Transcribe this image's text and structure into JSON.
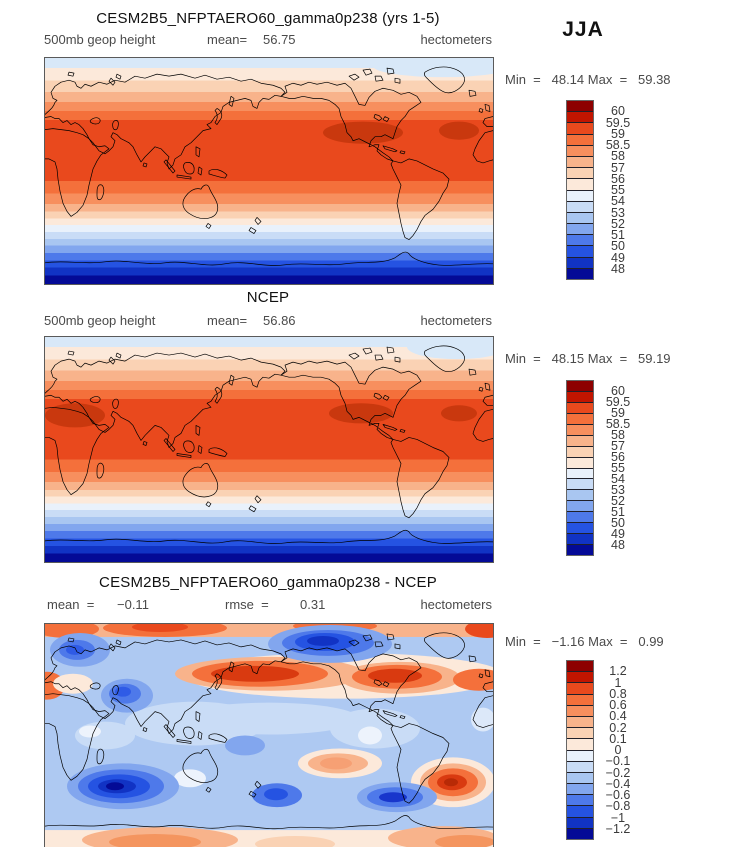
{
  "page": {
    "season": "JJA"
  },
  "panels": [
    {
      "title": "CESM2B5_NFPTAERO60_gamma0p238 (yrs 1-5)",
      "field_label": "500mb geop height",
      "stat1_label": "mean=",
      "stat1_value": "56.75",
      "stat2_label": "",
      "stat2_value": "",
      "units": "hectometers",
      "min_label": "Min  =",
      "min_value": "48.14",
      "max_label": "Max  =",
      "max_value": "59.38",
      "colorbar_labels": [
        "60",
        "59.5",
        "59",
        "58.5",
        "58",
        "57",
        "56",
        "55",
        "54",
        "53",
        "52",
        "51",
        "50",
        "49",
        "48"
      ]
    },
    {
      "title": "NCEP",
      "field_label": "500mb geop height",
      "stat1_label": "mean=",
      "stat1_value": "56.86",
      "stat2_label": "",
      "stat2_value": "",
      "units": "hectometers",
      "min_label": "Min  =",
      "min_value": "48.15",
      "max_label": "Max  =",
      "max_value": "59.19",
      "colorbar_labels": [
        "60",
        "59.5",
        "59",
        "58.5",
        "58",
        "57",
        "56",
        "55",
        "54",
        "53",
        "52",
        "51",
        "50",
        "49",
        "48"
      ]
    },
    {
      "title": "CESM2B5_NFPTAERO60_gamma0p238 - NCEP",
      "field_label": "",
      "stat1_label": "mean  =",
      "stat1_value": "−0.11",
      "stat2_label": "rmse  =",
      "stat2_value": "0.31",
      "units": "hectometers",
      "min_label": "Min  =",
      "min_value": "−1.16",
      "max_label": "Max  =",
      "max_value": "0.99",
      "colorbar_labels": [
        "1.2",
        "1",
        "0.8",
        "0.6",
        "0.4",
        "0.2",
        "0.1",
        "0",
        "−0.1",
        "−0.2",
        "−0.4",
        "−0.6",
        "−0.8",
        "−1",
        "−1.2"
      ]
    }
  ],
  "colorbar_colors": [
    "#8d0000",
    "#c21500",
    "#e9491d",
    "#f4703b",
    "#f78f5e",
    "#f8b38b",
    "#fad2b4",
    "#fce9da",
    "#e9f1fb",
    "#c9dcf6",
    "#a9c6f1",
    "#82a6ee",
    "#4e79ea",
    "#2553e2",
    "#1133c4",
    "#040a96"
  ],
  "chart_data": [
    {
      "type": "heatmap",
      "kind": "global filled-contour map, cylindrical equidistant, centered on 180E",
      "title": "CESM2B5_NFPTAERO60_gamma0p238 (yrs 1-5)",
      "season": "JJA",
      "variable": "500mb geop height",
      "units": "hectometers",
      "mean": 56.75,
      "min": 48.14,
      "max": 59.38,
      "contour_levels": [
        48,
        49,
        50,
        51,
        52,
        53,
        54,
        55,
        56,
        57,
        58,
        58.5,
        59,
        59.5,
        60
      ],
      "palette": "blue-to-red, 16 classes",
      "pattern": "zonal bands: light blue Arctic, cream/orange mid-latitudes, deep red-orange subtropics and tropics, grading to dark navy blue toward Antarctica"
    },
    {
      "type": "heatmap",
      "kind": "global filled-contour map, cylindrical equidistant, centered on 180E",
      "title": "NCEP",
      "season": "JJA",
      "variable": "500mb geop height",
      "units": "hectometers",
      "mean": 56.86,
      "min": 48.15,
      "max": 59.19,
      "contour_levels": [
        48,
        49,
        50,
        51,
        52,
        53,
        54,
        55,
        56,
        57,
        58,
        58.5,
        59,
        59.5,
        60
      ],
      "palette": "blue-to-red, 16 classes",
      "pattern": "same zonal band structure as model panel with slightly broader red band"
    },
    {
      "type": "heatmap",
      "kind": "global filled-contour difference map (model minus reanalysis)",
      "title": "CESM2B5_NFPTAERO60_gamma0p238 - NCEP",
      "season": "JJA",
      "units": "hectometers",
      "mean": -0.11,
      "rmse": 0.31,
      "min": -1.16,
      "max": 0.99,
      "contour_levels": [
        -1.2,
        -1,
        -0.8,
        -0.6,
        -0.4,
        -0.2,
        -0.1,
        0,
        0.1,
        0.2,
        0.4,
        0.6,
        0.8,
        1,
        1.2
      ],
      "palette": "blue-to-red, 16 classes",
      "pattern": "mostly light blue (-0.1 to -0.4); warm anomalies: orange band at north edge, strong positive centers over N Pacific and N America ~50N, large positive cell in S Atlantic ~45S, peach cell S Pacific, orange along Antarctic edge; cold anomalies: dark blue over Scandinavia and Arctic Canada, Middle East, deep navy center S Indian Ocean ~55S, blue cells S of New Zealand and SE Pacific"
    }
  ]
}
